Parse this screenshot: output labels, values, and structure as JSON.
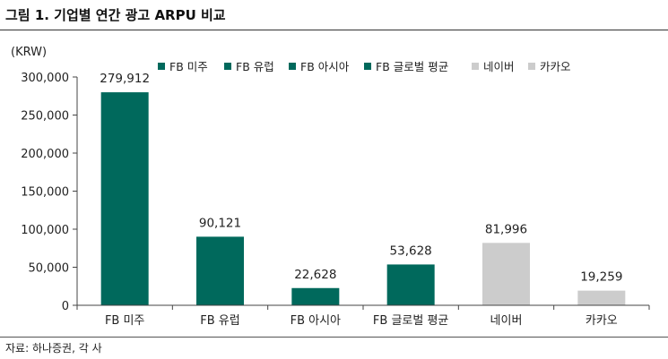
{
  "title": "그림 1. 기업별 연간 광고 ARPU 비교",
  "source": "자료: 하나증권, 각 사",
  "colors": {
    "dark": "#00695C",
    "light": "#CCCCCC"
  },
  "chart_data": {
    "type": "bar",
    "unit_label": "(KRW)",
    "categories": [
      "FB 미주",
      "FB 유럽",
      "FB 아시아",
      "FB 글로벌 평균",
      "네이버",
      "카카오"
    ],
    "values": [
      279912,
      90121,
      22628,
      53628,
      81996,
      19259
    ],
    "value_labels": [
      "279,912",
      "90,121",
      "22,628",
      "53,628",
      "81,996",
      "19,259"
    ],
    "bar_colors": [
      "#00695C",
      "#00695C",
      "#00695C",
      "#00695C",
      "#CCCCCC",
      "#CCCCCC"
    ],
    "yticks": [
      0,
      50000,
      100000,
      150000,
      200000,
      250000,
      300000
    ],
    "ytick_labels": [
      "0",
      "50,000",
      "100,000",
      "150,000",
      "200,000",
      "250,000",
      "300,000"
    ],
    "ylim": [
      0,
      300000
    ],
    "legend_position": "top",
    "legend": [
      {
        "name": "FB 미주",
        "color": "#00695C"
      },
      {
        "name": "FB 유럽",
        "color": "#00695C"
      },
      {
        "name": "FB 아시아",
        "color": "#00695C"
      },
      {
        "name": "FB 글로벌 평균",
        "color": "#00695C"
      },
      {
        "name": "네이버",
        "color": "#CCCCCC"
      },
      {
        "name": "카카오",
        "color": "#CCCCCC"
      }
    ],
    "grid": false
  }
}
